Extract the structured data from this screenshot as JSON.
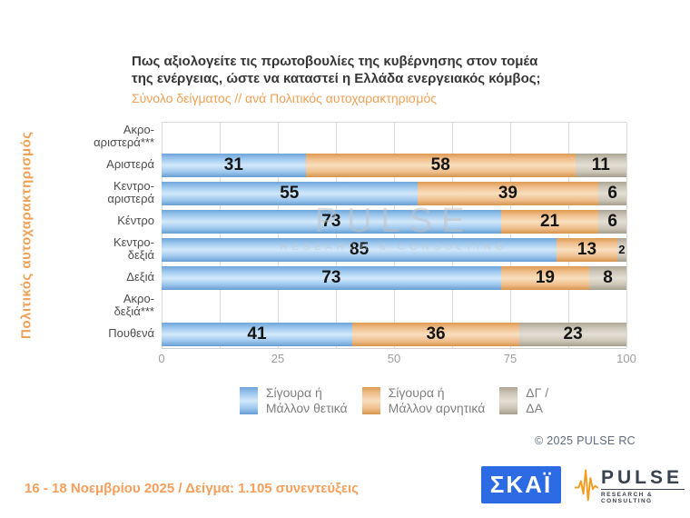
{
  "header": {
    "title": "Πως αξιολογείτε τις πρωτοβουλίες της κυβέρνησης στον τομέα\nτης ενέργειας, ώστε να καταστεί η Ελλάδα ενεργειακός κόμβος;",
    "subtitle": "Σύνολο δείγματος // ανά Πολιτικός αυτοχαρακτηρισμός"
  },
  "chart_data": {
    "type": "bar",
    "orientation": "horizontal",
    "stacked": true,
    "axis_title": "Πολιτικός αυτοχαρακτηρισμός",
    "categories": [
      "Ακρο-\nαριστερά***",
      "Αριστερά",
      "Κεντρο-\nαριστερά",
      "Κέντρο",
      "Κεντρο-\nδεξιά",
      "Δεξιά",
      "Ακρο-\nδεξιά***",
      "Πουθενά"
    ],
    "series": [
      {
        "name": "Σίγουρα ή Μάλλον θετικά",
        "color": "#9DC3E6",
        "values": [
          null,
          31,
          55,
          73,
          85,
          73,
          null,
          41
        ]
      },
      {
        "name": "Σίγουρα ή Μάλλον αρνητικά",
        "color": "#F0BE8C",
        "values": [
          null,
          58,
          39,
          21,
          13,
          19,
          null,
          36
        ]
      },
      {
        "name": "ΔΓ / ΔΑ",
        "color": "#CCC6B8",
        "values": [
          null,
          11,
          6,
          6,
          2,
          8,
          null,
          23
        ]
      }
    ],
    "xlim": [
      0,
      100
    ],
    "ticks": [
      0,
      25,
      50,
      75,
      100
    ],
    "grid": "vertical minor gridlines every 12.5",
    "legend_position": "bottom"
  },
  "legend": [
    {
      "label": "Σίγουρα ή\nΜάλλον θετικά",
      "swatch": "blue"
    },
    {
      "label": "Σίγουρα ή\nΜάλλον αρνητικά",
      "swatch": "orange"
    },
    {
      "label": "ΔΓ /\nΔΑ",
      "swatch": "gray"
    }
  ],
  "watermark": {
    "line1": "PULSE",
    "line2": "RESEARCH & CONSULTING"
  },
  "footer": {
    "copyright": "© 2025  PULSE RC",
    "note": "16 - 18 Νοεμβρίου 2025  /  Δείγμα:  1.105 συνεντεύξεις"
  },
  "logos": {
    "skai": "ΣΚΑΪ",
    "pulse_name": "PULSE",
    "pulse_sub": "RESEARCH & CONSULTING"
  },
  "colors": {
    "accent_orange": "#F0A055",
    "series_blue": "#9DC3E6",
    "series_orange": "#F0BE8C",
    "series_gray": "#CCC6B8",
    "skai_blue": "#2D6BE4",
    "pulse_wave_orange": "#F49A1C"
  }
}
